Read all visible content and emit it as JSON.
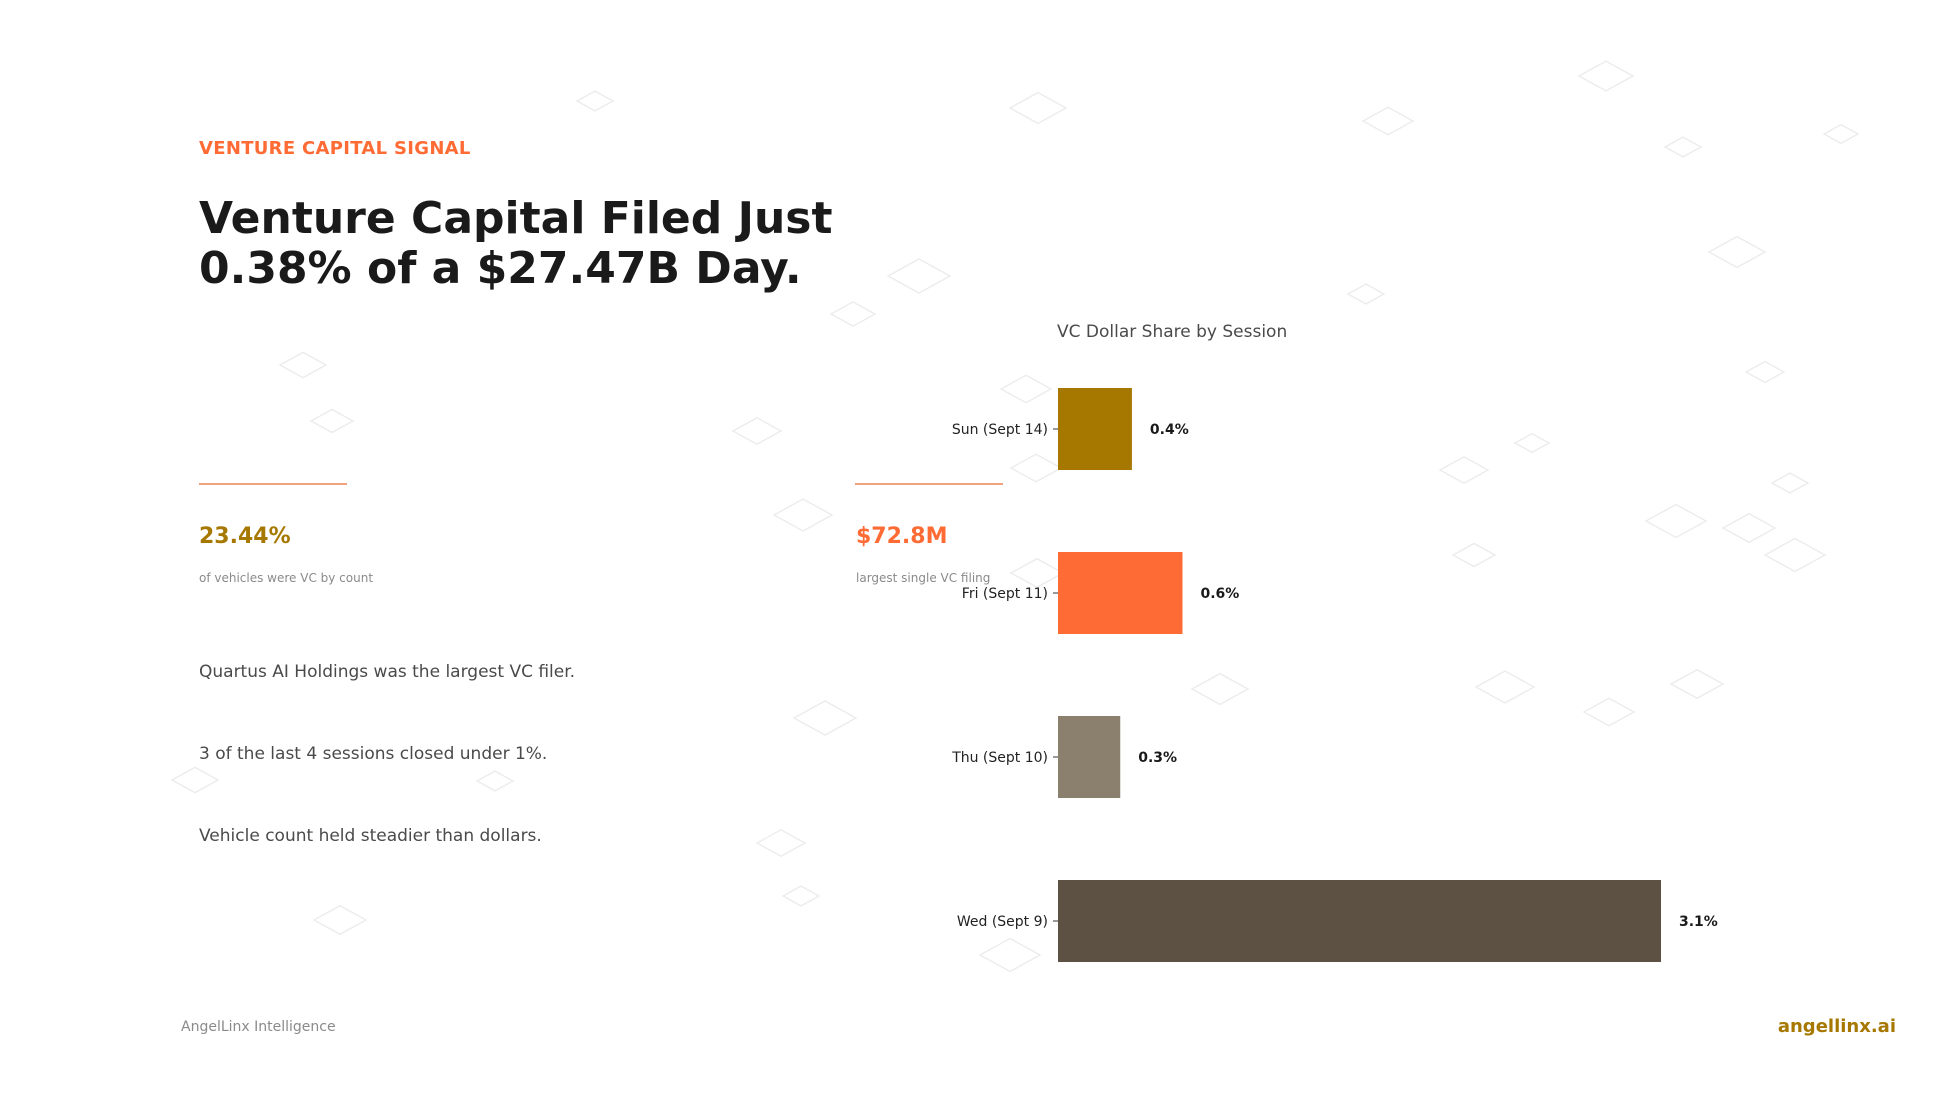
{
  "eyebrow": "VENTURE CAPITAL SIGNAL",
  "headline": "Venture Capital Filed Just 0.38% of a $27.47B Day.",
  "stats": [
    {
      "value": "23.44%",
      "caption": "of vehicles were VC by count",
      "color": "#a67800"
    },
    {
      "value": "$72.8M",
      "caption": "largest single VC filing",
      "color": "#ff6b35"
    }
  ],
  "bullets": [
    "Quartus AI Holdings was the largest VC filer.",
    "3 of the last 4 sessions closed under 1%.",
    "Vehicle count held steadier than dollars."
  ],
  "footer": {
    "left": "AngelLinx Intelligence",
    "right": "angellinx.ai"
  },
  "chart_data": {
    "type": "bar",
    "orientation": "horizontal",
    "title": "VC Dollar Share by Session",
    "xlabel": "",
    "ylabel": "",
    "categories": [
      "Sun (Sept 14)",
      "Fri (Sept 11)",
      "Thu (Sept 10)",
      "Wed (Sept 9)"
    ],
    "values": [
      0.38,
      0.64,
      0.32,
      3.1
    ],
    "value_labels": [
      "0.4%",
      "0.6%",
      "0.3%",
      "3.1%"
    ],
    "colors": [
      "#a67800",
      "#ff6b35",
      "#8b7f6e",
      "#5c5142"
    ],
    "xlim": [
      0,
      3.1
    ],
    "grid": false,
    "legend": "none"
  }
}
